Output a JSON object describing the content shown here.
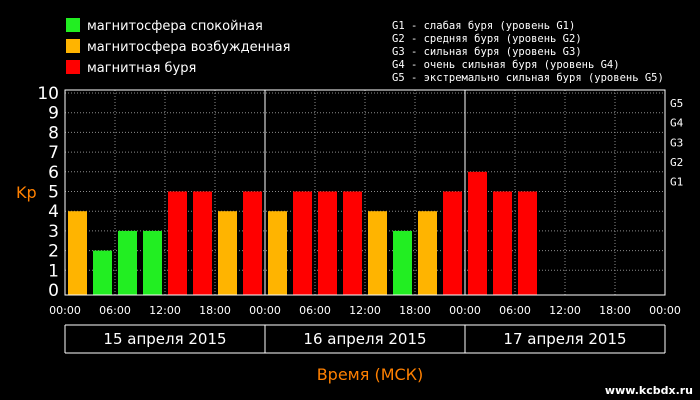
{
  "legend": [
    {
      "label": "магнитосфера спокойная",
      "color": "#22ee22"
    },
    {
      "label": "магнитосфера возбужденная",
      "color": "#ffb400"
    },
    {
      "label": "магнитная буря",
      "color": "#ff0000"
    }
  ],
  "g_legend": [
    "G1 - слабая буря (уровень G1)",
    "G2 - средняя буря (уровень G2)",
    "G3 - сильная буря (уровень G3)",
    "G4 - очень сильная буря (уровень G4)",
    "G5 - экстремально сильная буря (уровень G5)"
  ],
  "brand": "www.kcbdx.ru",
  "chart_data": {
    "type": "bar",
    "title": "",
    "ylabel": "Kp",
    "xlabel": "Время (МСК)",
    "ylim": [
      0,
      10
    ],
    "yticks": [
      "0",
      "1",
      "2",
      "3",
      "4",
      "5",
      "6",
      "7",
      "8",
      "9",
      "10"
    ],
    "g_levels": [
      {
        "label": "G1",
        "kp": 5
      },
      {
        "label": "G2",
        "kp": 6
      },
      {
        "label": "G3",
        "kp": 7
      },
      {
        "label": "G4",
        "kp": 8
      },
      {
        "label": "G5",
        "kp": 9
      }
    ],
    "xtick_labels": [
      "00:00",
      "06:00",
      "12:00",
      "18:00",
      "00:00",
      "06:00",
      "12:00",
      "18:00",
      "00:00",
      "06:00",
      "12:00",
      "18:00",
      "00:00"
    ],
    "dates": [
      "15 апреля 2015",
      "16 апреля 2015",
      "17 апреля 2015"
    ],
    "interval_hours": 3,
    "categories": [
      "15.04 00-03",
      "15.04 03-06",
      "15.04 06-09",
      "15.04 09-12",
      "15.04 12-15",
      "15.04 15-18",
      "15.04 18-21",
      "15.04 21-24",
      "16.04 00-03",
      "16.04 03-06",
      "16.04 06-09",
      "16.04 09-12",
      "16.04 12-15",
      "16.04 15-18",
      "16.04 18-21",
      "16.04 21-24",
      "17.04 00-03",
      "17.04 03-06",
      "17.04 06-09"
    ],
    "values": [
      4,
      2,
      3,
      3,
      5,
      5,
      4,
      5,
      4,
      5,
      5,
      5,
      4,
      3,
      4,
      5,
      6,
      5,
      5
    ],
    "grid": true,
    "legend_position": "top-left"
  }
}
